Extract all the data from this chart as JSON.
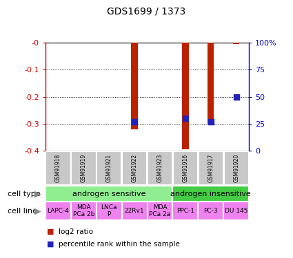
{
  "title": "GDS1699 / 1373",
  "samples": [
    "GSM91918",
    "GSM91919",
    "GSM91921",
    "GSM91922",
    "GSM91923",
    "GSM91916",
    "GSM91917",
    "GSM91920"
  ],
  "log2_ratio": [
    null,
    null,
    null,
    -0.32,
    null,
    -0.395,
    -0.3,
    -0.005
  ],
  "percentile_rank_pct": [
    null,
    null,
    null,
    27,
    null,
    30,
    27,
    50
  ],
  "cell_types": [
    {
      "label": "androgen sensitive",
      "start": 0,
      "end": 5,
      "color": "#90ee90"
    },
    {
      "label": "androgen insensitive",
      "start": 5,
      "end": 8,
      "color": "#44cc44"
    }
  ],
  "cell_lines": [
    "LAPC-4",
    "MDA\nPCa 2b",
    "LNCa\nP",
    "22Rv1",
    "MDA\nPCa 2a",
    "PPC-1",
    "PC-3",
    "DU 145"
  ],
  "cell_line_color": "#ee82ee",
  "bar_color": "#bb2200",
  "dot_color": "#2222bb",
  "left_axis_color": "#cc0000",
  "right_axis_color": "#0000cc",
  "ylim_left": [
    -0.4,
    0.0
  ],
  "ylim_right": [
    0,
    100
  ],
  "yticks_left": [
    0.0,
    -0.1,
    -0.2,
    -0.3,
    -0.4
  ],
  "ytick_labels_left": [
    "-0",
    "-0.1",
    "-0.2",
    "-0.3",
    "-0.4"
  ],
  "yticks_right": [
    0,
    25,
    50,
    75,
    100
  ],
  "ytick_labels_right": [
    "0",
    "25",
    "50",
    "75",
    "100%"
  ],
  "legend_items": [
    {
      "label": "log2 ratio",
      "color": "#bb2200"
    },
    {
      "label": "percentile rank within the sample",
      "color": "#2222bb"
    }
  ],
  "bar_width": 0.25,
  "dot_size": 40,
  "grid_color": "black",
  "grid_linestyle": ":"
}
